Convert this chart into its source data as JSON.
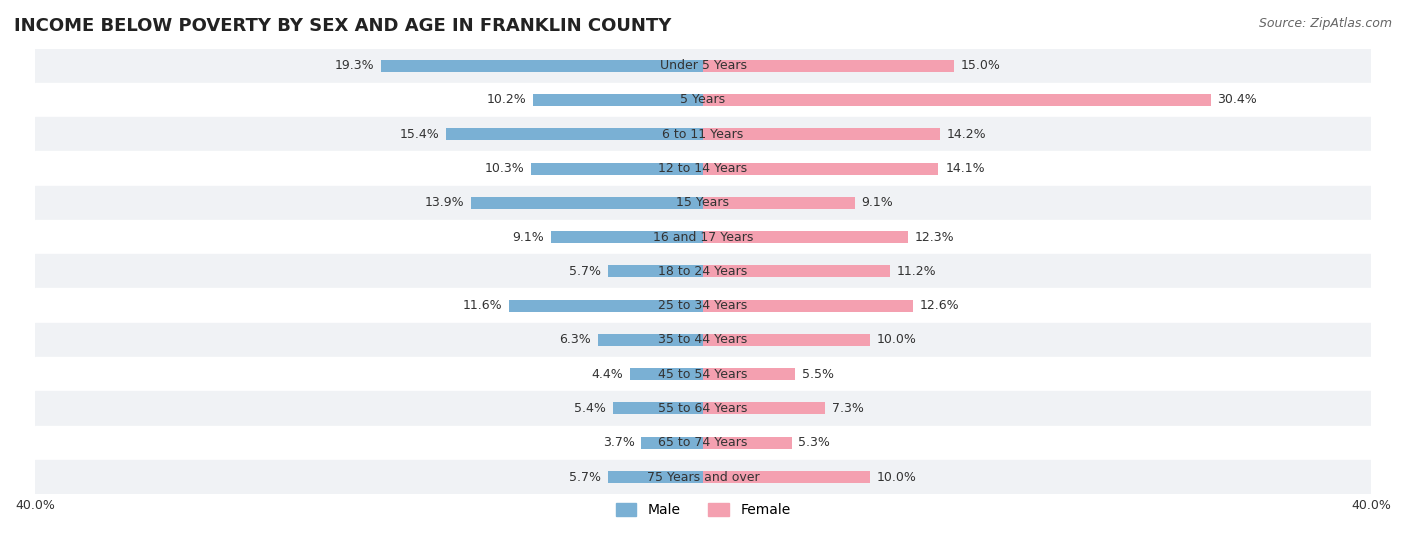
{
  "title": "INCOME BELOW POVERTY BY SEX AND AGE IN FRANKLIN COUNTY",
  "source": "Source: ZipAtlas.com",
  "categories": [
    "Under 5 Years",
    "5 Years",
    "6 to 11 Years",
    "12 to 14 Years",
    "15 Years",
    "16 and 17 Years",
    "18 to 24 Years",
    "25 to 34 Years",
    "35 to 44 Years",
    "45 to 54 Years",
    "55 to 64 Years",
    "65 to 74 Years",
    "75 Years and over"
  ],
  "male": [
    19.3,
    10.2,
    15.4,
    10.3,
    13.9,
    9.1,
    5.7,
    11.6,
    6.3,
    4.4,
    5.4,
    3.7,
    5.7
  ],
  "female": [
    15.0,
    30.4,
    14.2,
    14.1,
    9.1,
    12.3,
    11.2,
    12.6,
    10.0,
    5.5,
    7.3,
    5.3,
    10.0
  ],
  "male_color": "#7ab0d4",
  "female_color": "#f4a0b0",
  "axis_max": 40.0,
  "background_row_even": "#f0f2f5",
  "background_row_odd": "#ffffff",
  "title_fontsize": 13,
  "source_fontsize": 9,
  "label_fontsize": 9,
  "legend_fontsize": 10
}
